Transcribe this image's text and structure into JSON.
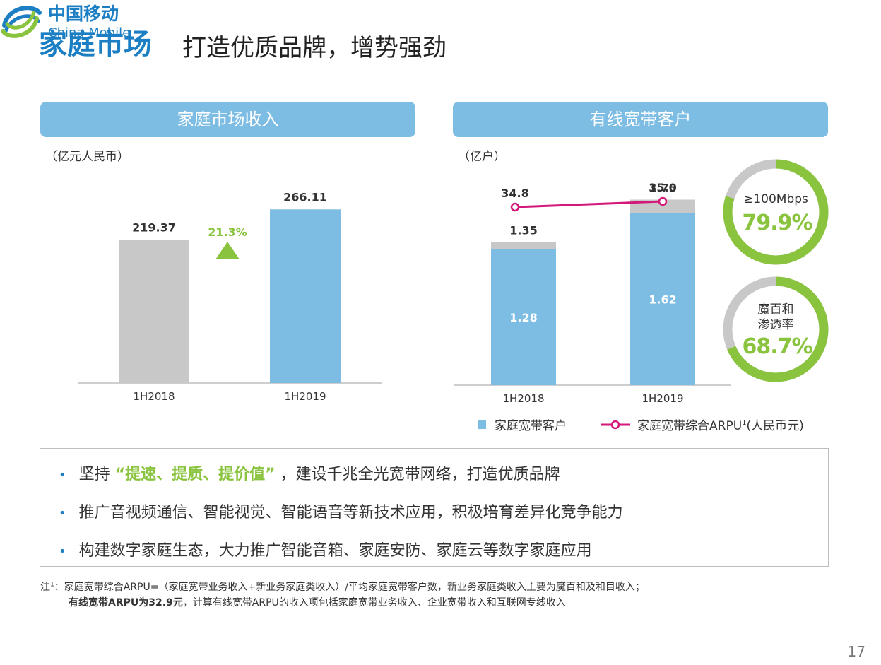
{
  "header": {
    "title_strong": "家庭市场",
    "title_rest": "打造优质品牌，增势强劲",
    "logo_cn": "中国移动",
    "logo_en": "China Mobile"
  },
  "panels": {
    "left_title": "家庭市场收入",
    "right_title": "有线宽带客户",
    "left_unit": "（亿元人民币）",
    "right_unit": "（亿户）"
  },
  "chart_data": [
    {
      "type": "bar",
      "categories": [
        "1H2018",
        "1H2019"
      ],
      "values": [
        219.37,
        266.11
      ],
      "value_labels": [
        "219.37",
        "266.11"
      ],
      "bar_colors": [
        "#c8c8c8",
        "#7dbde4"
      ],
      "growth_label": "21.3%",
      "ylim": [
        0,
        300
      ]
    },
    {
      "type": "bar",
      "stacked": true,
      "categories": [
        "1H2018",
        "1H2019"
      ],
      "series": [
        {
          "name": "家庭宽带客户",
          "values": [
            1.28,
            1.62
          ],
          "color": "#7dbde4",
          "value_labels": [
            "1.28",
            "1.62"
          ]
        },
        {
          "values": [
            0.07,
            0.13
          ],
          "color": "#c8c8c8"
        }
      ],
      "total_labels": [
        "1.35",
        "1.75"
      ],
      "totals": [
        1.35,
        1.75
      ],
      "ylim": [
        0,
        2.0
      ],
      "line_series": {
        "name": "家庭宽带综合ARPU",
        "name_sup": "1",
        "name_suffix": "(人民币元)",
        "values": [
          34.8,
          35.0
        ],
        "value_labels": [
          "34.8",
          "35.0"
        ],
        "color": "#d3197a"
      }
    },
    {
      "type": "pie",
      "label": "≥100Mbps",
      "value": 79.9,
      "value_label": "79.9%",
      "colors": [
        "#8ac43f",
        "#c8c8c8"
      ]
    },
    {
      "type": "pie",
      "label_line1": "魔百和",
      "label_line2": "渗透率",
      "value": 68.7,
      "value_label": "68.7%",
      "colors": [
        "#8ac43f",
        "#c8c8c8"
      ]
    }
  ],
  "bullets": {
    "b1_pre": "坚持",
    "b1_hl": "“提速、提质、提价值”",
    "b1_post": "，建设千兆全光宽带网络，打造优质品牌",
    "b2": "推广音视频通信、智能视觉、智能语音等新技术应用，积极培育差异化竞争能力",
    "b3": "构建数字家庭生态，大力推广智能音箱、家庭安防、家庭云等数字家庭应用"
  },
  "notes": {
    "note1_prefix": "注",
    "note1_sup": "1",
    "note1_text": "：家庭宽带综合ARPU=（家庭宽带业务收入+新业务家庭类收入）/平均家庭宽带客户数，新业务家庭类收入主要为魔百和及和目收入；",
    "note2_bold": "有线宽带ARPU为32.9元",
    "note2_text": "，计算有线宽带ARPU的收入项包括家庭宽带业务收入、企业宽带收入和互联网专线收入"
  },
  "page_number": "17"
}
